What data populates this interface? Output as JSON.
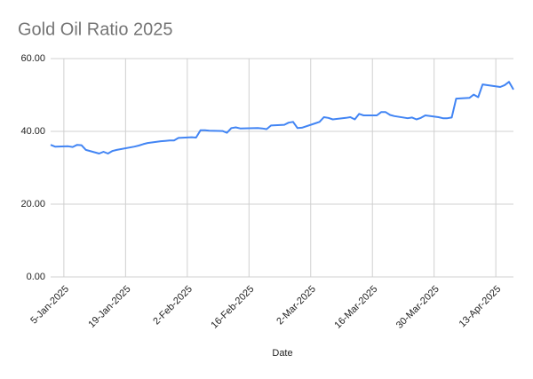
{
  "chart_data": {
    "type": "line",
    "title": "Gold Oil Ratio 2025",
    "x_label": "Date",
    "x": [
      "2-Jan-2025",
      "3-Jan-2025",
      "6-Jan-2025",
      "7-Jan-2025",
      "8-Jan-2025",
      "9-Jan-2025",
      "10-Jan-2025",
      "13-Jan-2025",
      "14-Jan-2025",
      "15-Jan-2025",
      "16-Jan-2025",
      "17-Jan-2025",
      "21-Jan-2025",
      "22-Jan-2025",
      "23-Jan-2025",
      "24-Jan-2025",
      "27-Jan-2025",
      "28-Jan-2025",
      "29-Jan-2025",
      "30-Jan-2025",
      "31-Jan-2025",
      "3-Feb-2025",
      "4-Feb-2025",
      "5-Feb-2025",
      "6-Feb-2025",
      "7-Feb-2025",
      "10-Feb-2025",
      "11-Feb-2025",
      "12-Feb-2025",
      "13-Feb-2025",
      "14-Feb-2025",
      "18-Feb-2025",
      "19-Feb-2025",
      "20-Feb-2025",
      "21-Feb-2025",
      "24-Feb-2025",
      "25-Feb-2025",
      "26-Feb-2025",
      "27-Feb-2025",
      "28-Feb-2025",
      "3-Mar-2025",
      "4-Mar-2025",
      "5-Mar-2025",
      "6-Mar-2025",
      "7-Mar-2025",
      "10-Mar-2025",
      "11-Mar-2025",
      "12-Mar-2025",
      "13-Mar-2025",
      "14-Mar-2025",
      "17-Mar-2025",
      "18-Mar-2025",
      "19-Mar-2025",
      "20-Mar-2025",
      "21-Mar-2025",
      "24-Mar-2025",
      "25-Mar-2025",
      "26-Mar-2025",
      "27-Mar-2025",
      "28-Mar-2025",
      "31-Mar-2025",
      "1-Apr-2025",
      "2-Apr-2025",
      "3-Apr-2025",
      "4-Apr-2025",
      "7-Apr-2025",
      "8-Apr-2025",
      "9-Apr-2025",
      "10-Apr-2025",
      "11-Apr-2025",
      "14-Apr-2025",
      "15-Apr-2025",
      "16-Apr-2025",
      "17-Apr-2025"
    ],
    "series": [
      {
        "name": "Gold Oil Ratio",
        "color": "#4285f4",
        "values": [
          36.3,
          35.8,
          35.9,
          35.7,
          36.3,
          36.2,
          34.9,
          33.9,
          34.4,
          33.9,
          34.6,
          34.9,
          35.8,
          36.1,
          36.5,
          36.8,
          37.3,
          37.4,
          37.5,
          37.5,
          38.2,
          38.4,
          38.3,
          40.3,
          40.3,
          40.2,
          40.1,
          39.6,
          40.9,
          41.1,
          40.8,
          40.9,
          40.8,
          40.6,
          41.6,
          41.8,
          42.4,
          42.6,
          40.9,
          41.0,
          42.2,
          42.6,
          43.9,
          43.7,
          43.3,
          43.7,
          43.9,
          43.3,
          44.8,
          44.4,
          44.4,
          45.3,
          45.3,
          44.5,
          44.2,
          43.6,
          43.8,
          43.3,
          43.7,
          44.4,
          43.9,
          43.6,
          43.6,
          43.8,
          49.0,
          49.2,
          50.1,
          49.4,
          52.9,
          52.7,
          52.2,
          52.7,
          53.6,
          51.5
        ]
      }
    ],
    "xlim": [
      "2-Jan-2025",
      "17-Apr-2025"
    ],
    "xticks": [
      "5-Jan-2025",
      "19-Jan-2025",
      "2-Feb-2025",
      "16-Feb-2025",
      "2-Mar-2025",
      "16-Mar-2025",
      "30-Mar-2025",
      "13-Apr-2025"
    ],
    "ylim": [
      0,
      60
    ],
    "yticks": [
      {
        "value": 0,
        "label": "0.00"
      },
      {
        "value": 20,
        "label": "20.00"
      },
      {
        "value": 40,
        "label": "40.00"
      },
      {
        "value": 60,
        "label": "60.00"
      }
    ],
    "grid": true
  }
}
